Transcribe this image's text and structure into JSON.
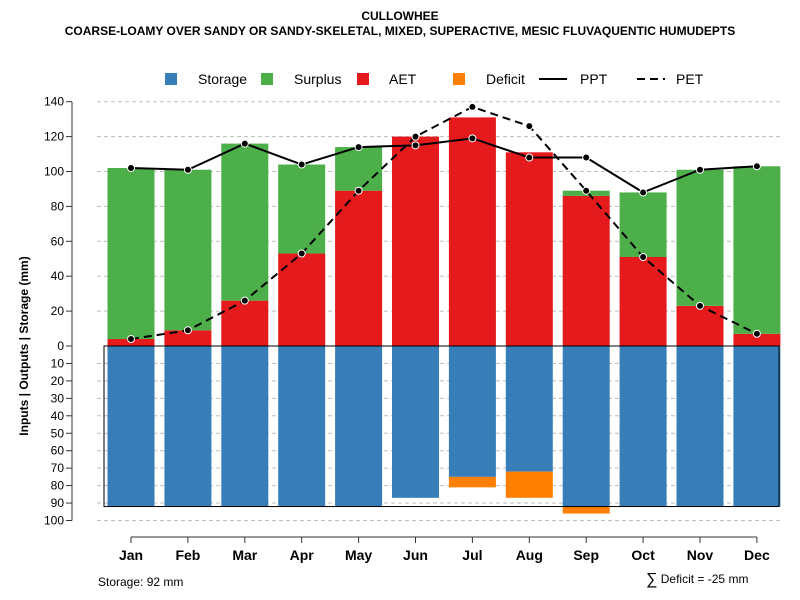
{
  "header": {
    "title": "CULLOWHEE",
    "subtitle": "COARSE-LOAMY OVER SANDY OR SANDY-SKELETAL, MIXED, SUPERACTIVE, MESIC FLUVAQUENTIC HUMUDEPTS"
  },
  "footer": {
    "storage_note": "Storage: 92 mm",
    "deficit_note": "Deficit = -25 mm",
    "deficit_symbol": "∑"
  },
  "colors": {
    "storage": "#377eb8",
    "surplus": "#4daf4a",
    "aet": "#e41a1c",
    "deficit": "#ff7f00",
    "grid": "#bdbdbd"
  },
  "chart_data": {
    "type": "bar",
    "title": "CULLOWHEE",
    "ylabel": "Inputs | Outputs | Storage    (mm)",
    "ylim_top": [
      0,
      140
    ],
    "ylim_bottom": [
      0,
      100
    ],
    "yticks_top": [
      "0",
      "20",
      "40",
      "60",
      "80",
      "100",
      "120",
      "140"
    ],
    "yticks_bottom": [
      "10",
      "20",
      "30",
      "40",
      "50",
      "60",
      "70",
      "80",
      "90",
      "100"
    ],
    "legend": [
      "Storage",
      "Surplus",
      "AET",
      "Deficit",
      "PPT",
      "PET"
    ],
    "legend_position": "top",
    "categories": [
      "Jan",
      "Feb",
      "Mar",
      "Apr",
      "May",
      "Jun",
      "Jul",
      "Aug",
      "Sep",
      "Oct",
      "Nov",
      "Dec"
    ],
    "storage_capacity": 92,
    "aet": [
      4,
      9,
      26,
      53,
      89,
      120,
      131,
      111,
      86,
      51,
      23,
      7
    ],
    "surplus": [
      98,
      92,
      90,
      51,
      25,
      0,
      0,
      0,
      3,
      37,
      78,
      96
    ],
    "storage": [
      92,
      92,
      92,
      92,
      92,
      87,
      75,
      72,
      92,
      92,
      92,
      92
    ],
    "deficit": [
      0,
      0,
      0,
      0,
      0,
      0,
      6,
      15,
      4,
      0,
      0,
      0
    ],
    "ppt": [
      102,
      101,
      116,
      104,
      114,
      115,
      119,
      108,
      108,
      88,
      101,
      103
    ],
    "pet": [
      4,
      9,
      26,
      53,
      89,
      120,
      137,
      126,
      89,
      51,
      23,
      7
    ]
  }
}
